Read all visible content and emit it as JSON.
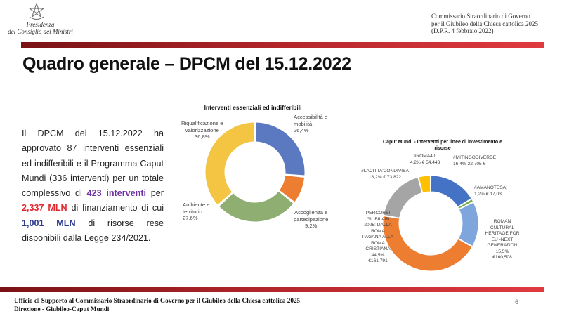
{
  "header": {
    "presidenza_line1": "Presidenza",
    "presidenza_line2": "del Consiglio dei Ministri",
    "commissario_lines": [
      "Commissario Straordinario di Governo",
      "per il Giubileo della Chiesa cattolica 2025",
      "(D.P.R. 4 febbraio 2022)"
    ]
  },
  "title": "Quadro generale – DPCM del 15.12.2022",
  "body": {
    "part1": "Il DPCM del 15.12.2022 ha approvato 87 interventi essenziali ed indifferibili e il Programma Caput Mundi (336 interventi) per un totale complessivo di ",
    "hl1": "423 interventi",
    "part2": " per ",
    "hl2": "2,337 MLN",
    "part3": " di finanziamento di cui ",
    "hl3": "1,001 MLN",
    "part4": " di risorse rese disponibili dalla Legge 234/2021."
  },
  "colors": {
    "bar": "#b3262a",
    "purple": "#7030a0",
    "red": "#e0292e",
    "navy": "#2f3b8f"
  },
  "chart_data": [
    {
      "type": "pie",
      "title": "Interventi essenziali ed indifferibili",
      "slices": [
        {
          "label_lines": [
            "Accessibilità e",
            "mobilità",
            "26,4%"
          ],
          "value": 26.4,
          "color": "#5b79c0"
        },
        {
          "label_lines": [
            "Accoglienza e",
            "partecipazione",
            "9,2%"
          ],
          "value": 9.2,
          "color": "#ed7d31"
        },
        {
          "label_lines": [
            "Ambiente e",
            "territorio",
            "27,6%"
          ],
          "value": 27.6,
          "color": "#8fae72"
        },
        {
          "label_lines": [
            "Riqualificazione e",
            "valorizzazione",
            "36,8%"
          ],
          "value": 36.8,
          "color": "#f4c542"
        }
      ]
    },
    {
      "type": "pie",
      "title_lines": [
        "Caput Mundi - Interventi per linee di investimento e",
        "risorse"
      ],
      "slices": [
        {
          "label_lines": [
            "#MITINGODIVERDE",
            "16,4% 22,705 €"
          ],
          "value": 16.4,
          "color": "#4472c4"
        },
        {
          "label_lines": [
            "#AMANOTESA;",
            "1,2% € 17,03"
          ],
          "value": 1.2,
          "color": "#70ad47"
        },
        {
          "label_lines": [
            "ROMAN",
            "CULTURAL",
            "HERITAGE FOR",
            "EU -NEXT",
            "GENERATION",
            "15,5%",
            "€160,508"
          ],
          "value": 15.5,
          "color": "#7ea6dc"
        },
        {
          "label_lines": [
            "PERCORSI",
            "GIUBILARI",
            "2025: DALLA",
            "ROMA",
            "PAGANA ALLA",
            "ROMA",
            "CRISTIANA",
            "44,5%",
            "€161,791"
          ],
          "value": 44.5,
          "color": "#ed7d31"
        },
        {
          "label_lines": [
            "#LACITTA'CONDIVISA",
            "18,2% € 73,822"
          ],
          "value": 18.2,
          "color": "#a5a5a5"
        },
        {
          "label_lines": [
            "#ROMA4.0",
            "4,2% € 54,443"
          ],
          "value": 4.2,
          "color": "#ffc000"
        }
      ]
    }
  ],
  "footer": {
    "line1": "Ufficio di Supporto al Commissario Straordinario di Governo per il Giubileo della Chiesa cattolica 2025",
    "line2": "Direzione - Giubileo-Caput Mundi",
    "page": "6"
  }
}
